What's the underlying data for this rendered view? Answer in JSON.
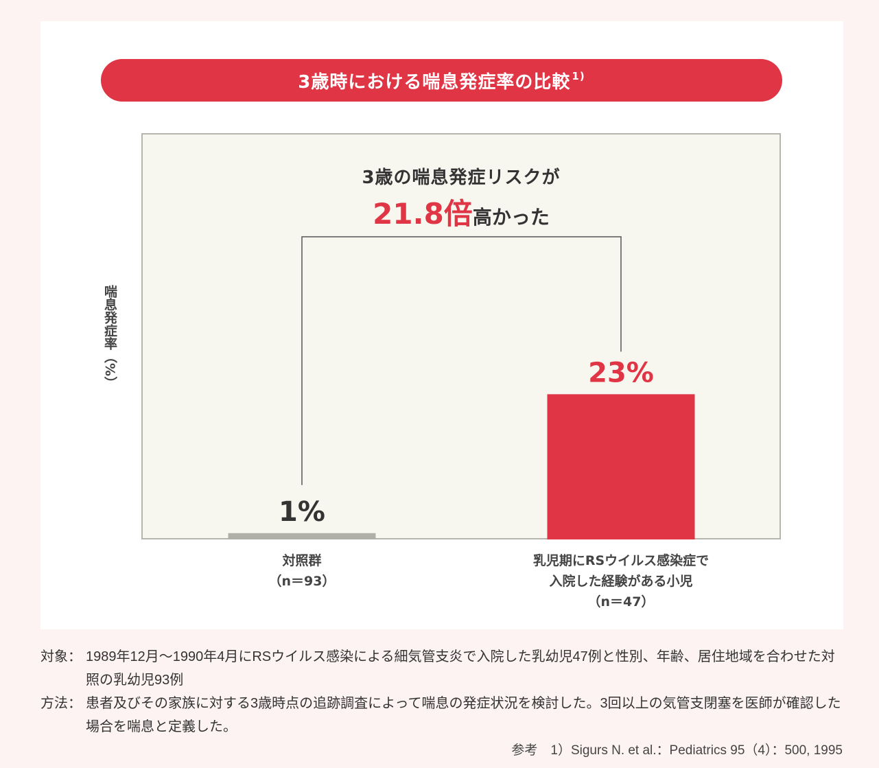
{
  "title": "3歳時における喘息発症率の比較",
  "title_ref": "1)",
  "headline": {
    "line1": "3歳の喘息発症リスクが",
    "ratio": "21.8倍",
    "suffix": "高かった"
  },
  "colors": {
    "accent": "#e03545",
    "control": "#b1b0a8"
  },
  "chart_data": {
    "type": "bar",
    "ylabel": "喘息発症率（%）",
    "categories": [
      {
        "lines": [
          "対照群",
          "（n＝93）"
        ]
      },
      {
        "lines": [
          "乳児期にRSウイルス感染症で",
          "入院した経験がある小児",
          "（n＝47）"
        ]
      }
    ],
    "values": [
      1,
      23
    ],
    "value_labels": [
      "1%",
      "23%"
    ],
    "bar_colors": [
      "#b1b0a8",
      "#e03545"
    ]
  },
  "notes": [
    {
      "key": "対象：",
      "text": "1989年12月～1990年4月にRSウイルス感染による細気管支炎で入院した乳幼児47例と性別、年齢、居住地域を合わせた対照の乳幼児93例"
    },
    {
      "key": "方法：",
      "text": "患者及びその家族に対する3歳時点の追跡調査によって喘息の発症状況を検討した。3回以上の気管支閉塞を医師が確認した場合を喘息と定義した。"
    }
  ],
  "reference": "参考　1）Sigurs N. et al.：Pediatrics 95（4）：500, 1995"
}
